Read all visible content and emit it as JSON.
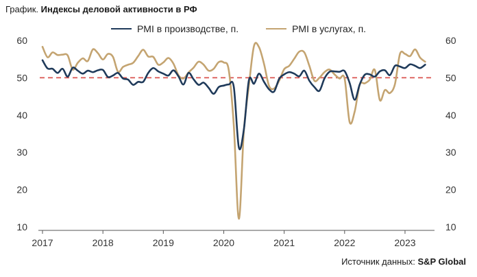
{
  "header": {
    "prefix": "График.",
    "title": "Индексы деловой активности в РФ"
  },
  "source": {
    "prefix": "Источник данных:",
    "name": "S&P Global"
  },
  "colors": {
    "manufacturing": "#1f3a5a",
    "services": "#c4a471",
    "threshold": "#d9534f",
    "axis": "#555555"
  },
  "chart_data": {
    "type": "line",
    "title": "Индексы деловой активности в РФ",
    "xlabel": "",
    "ylabel": "",
    "ylim": [
      10,
      60
    ],
    "xlim": [
      2017.0,
      2023.42
    ],
    "yticks_left": [
      "60",
      "50",
      "40",
      "30",
      "20",
      "10"
    ],
    "yticks_right": [
      "60",
      "50",
      "40",
      "30",
      "20",
      "10"
    ],
    "xticks": [
      "2017",
      "2018",
      "2019",
      "2020",
      "2021",
      "2022",
      "2023"
    ],
    "threshold": 50,
    "legend": "top-center",
    "series": [
      {
        "name": "PMI в производстве, п.",
        "key": "manufacturing",
        "start": 2017.0,
        "step_months": 1,
        "values": [
          54.7,
          52.5,
          52.4,
          51.3,
          52.4,
          50.3,
          52.7,
          51.9,
          51.1,
          51.9,
          51.5,
          52.0,
          52.1,
          50.2,
          50.6,
          51.3,
          49.8,
          49.5,
          48.1,
          48.9,
          48.9,
          51.3,
          52.6,
          51.7,
          51.1,
          50.6,
          52.0,
          50.4,
          48.2,
          51.3,
          49.6,
          48.1,
          48.7,
          47.3,
          45.7,
          47.5,
          47.9,
          48.2,
          47.5,
          31.3,
          36.2,
          49.4,
          48.4,
          51.1,
          48.9,
          46.9,
          46.3,
          49.7,
          50.9,
          51.5,
          51.1,
          50.4,
          51.9,
          49.2,
          47.5,
          46.5,
          49.8,
          51.6,
          51.7,
          51.6,
          51.8,
          48.6,
          44.1,
          48.2,
          50.8,
          50.9,
          50.3,
          51.7,
          52.0,
          50.7,
          53.2,
          53.0,
          52.6,
          53.6,
          53.2,
          52.6,
          53.5
        ]
      },
      {
        "name": "PMI в услугах, п.",
        "key": "services",
        "start": 2017.0,
        "step_months": 1,
        "values": [
          58.3,
          55.5,
          56.8,
          56.1,
          56.2,
          56.0,
          52.2,
          54.0,
          55.2,
          54.5,
          57.6,
          56.6,
          54.9,
          56.4,
          55.6,
          51.6,
          52.9,
          53.5,
          54.0,
          55.8,
          57.5,
          55.7,
          55.6,
          53.5,
          54.1,
          55.3,
          53.8,
          50.7,
          49.8,
          51.4,
          52.7,
          54.3,
          53.5,
          51.9,
          52.4,
          54.2,
          54.1,
          52.0,
          37.1,
          12.2,
          35.9,
          48.0,
          58.5,
          58.2,
          53.7,
          47.8,
          47.1,
          49.2,
          52.3,
          53.2,
          55.1,
          57.0,
          56.8,
          53.2,
          49.2,
          50.0,
          51.5,
          52.2,
          50.9,
          49.8,
          49.8,
          38.1,
          40.9,
          48.1,
          48.5,
          49.5,
          52.1,
          44.0,
          46.7,
          45.9,
          48.3,
          56.4,
          56.4,
          55.8,
          57.6,
          55.4,
          54.3
        ]
      }
    ]
  }
}
